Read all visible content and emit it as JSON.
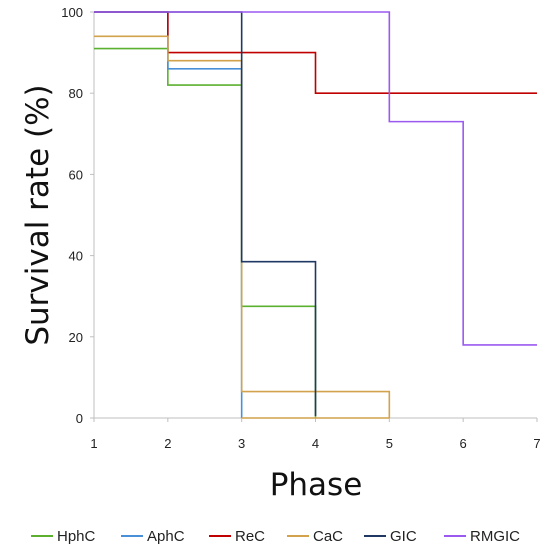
{
  "chart_data": {
    "type": "line",
    "step": true,
    "title": "",
    "xlabel": "Phase",
    "ylabel": "Survival rate (%)",
    "xlim": [
      1,
      7
    ],
    "ylim": [
      0,
      100
    ],
    "xticks": [
      1,
      2,
      3,
      4,
      5,
      6,
      7
    ],
    "yticks": [
      0,
      20,
      40,
      60,
      80,
      100
    ],
    "grid": false,
    "legend_position": "bottom",
    "series": [
      {
        "name": "HphC",
        "color": "#5cb030",
        "x": [
          1,
          2,
          3,
          4
        ],
        "y": [
          91,
          82,
          27.5,
          0
        ]
      },
      {
        "name": "AphC",
        "color": "#4a90d9",
        "x": [
          1,
          2,
          3
        ],
        "y": [
          100,
          86,
          0
        ]
      },
      {
        "name": "ReC",
        "color": "#c00000",
        "x": [
          1,
          2,
          4,
          7
        ],
        "y": [
          100,
          90,
          80,
          80
        ]
      },
      {
        "name": "CaC",
        "color": "#d2a24c",
        "x": [
          1,
          2,
          3,
          5
        ],
        "y": [
          94,
          88,
          6.5,
          0
        ]
      },
      {
        "name": "GIC",
        "color": "#1f3864",
        "x": [
          1,
          3,
          4
        ],
        "y": [
          100,
          38.5,
          0.5
        ]
      },
      {
        "name": "RMGIC",
        "color": "#9b59f0",
        "x": [
          1,
          5,
          6,
          7
        ],
        "y": [
          100,
          73,
          18,
          18
        ]
      }
    ],
    "extra_segments": [
      {
        "series": "CaC",
        "x": [
          3,
          5
        ],
        "y": [
          0,
          0
        ]
      }
    ]
  }
}
